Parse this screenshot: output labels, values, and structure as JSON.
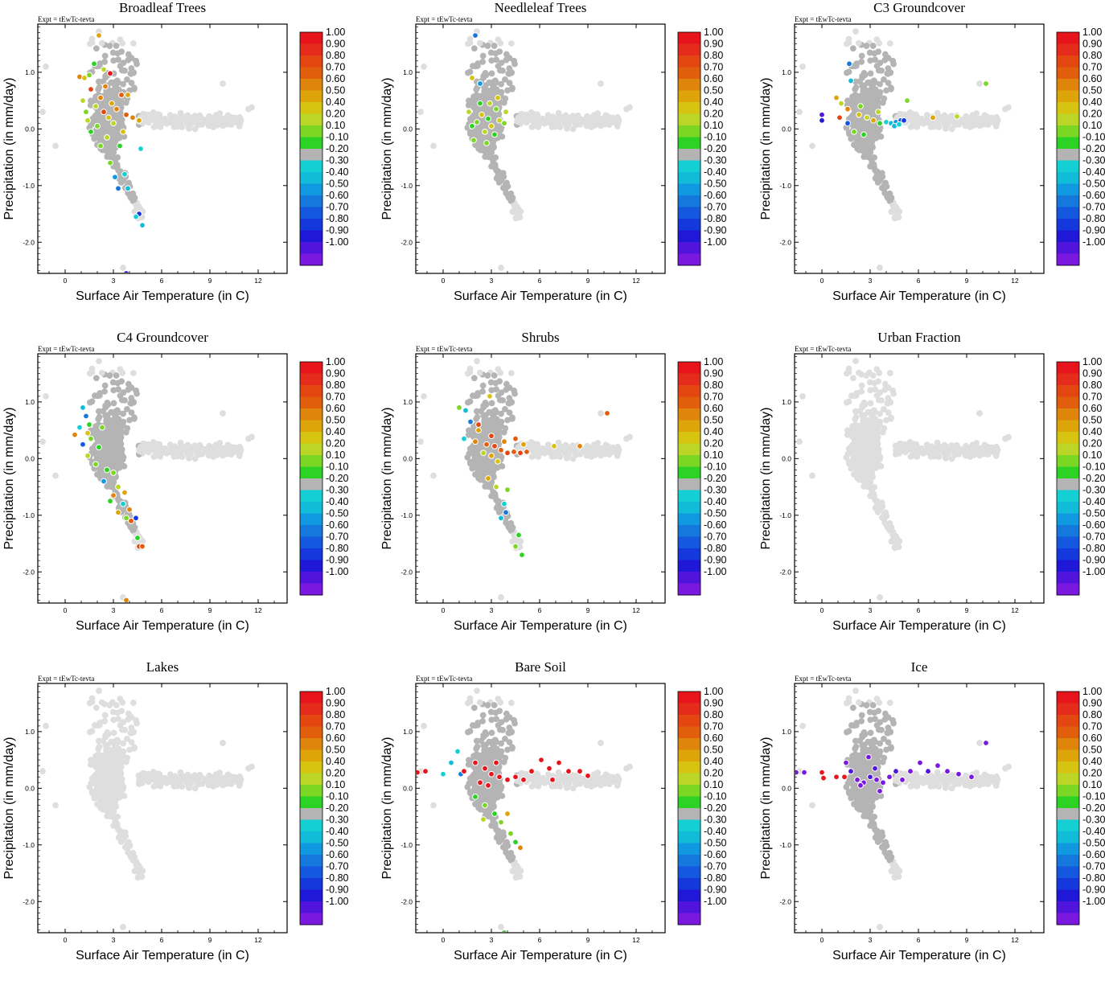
{
  "chart_data": {
    "type": "scatter",
    "common": {
      "expt_label": "Expt = tEwTc-tevta",
      "xlabel": "Surface Air Temperature (in C)",
      "ylabel": "Precipitation (in mm/day)",
      "xlim": [
        -1.7,
        13.8
      ],
      "ylim": [
        -2.55,
        1.85
      ],
      "xticks": [
        0,
        3,
        6,
        9,
        12
      ],
      "xtick_labels": [
        "0",
        "3",
        "6",
        "9",
        "12"
      ],
      "yticks": [
        -2,
        -1,
        0,
        1
      ],
      "ytick_labels": [
        "-2.0",
        "-1.0",
        "0.0",
        "1.0"
      ],
      "colorbar": {
        "labels": [
          "1.00",
          "0.90",
          "0.80",
          "0.70",
          "0.60",
          "0.50",
          "0.40",
          "0.20",
          "0.10",
          "-0.10",
          "-0.20",
          "-0.30",
          "-0.40",
          "-0.50",
          "-0.60",
          "-0.70",
          "-0.80",
          "-0.90",
          "-1.00"
        ],
        "colors": [
          "#e8141c",
          "#e52c1c",
          "#e44612",
          "#e05e0c",
          "#e0850c",
          "#dda50a",
          "#d6c410",
          "#bcd628",
          "#7cd624",
          "#2cd224",
          "#b4b4b4",
          "#14d0d4",
          "#10bcd8",
          "#1098e0",
          "#1478dc",
          "#1458e0",
          "#1438dc",
          "#2018d8",
          "#5014dc",
          "#7a18e0"
        ]
      }
    },
    "panels": [
      {
        "title": "Broadleaf Trees",
        "highlight": [
          [
            2.1,
            1.65,
            "#dda50a"
          ],
          [
            1.8,
            1.15,
            "#2cd224"
          ],
          [
            2.4,
            1.05,
            "#bcd628"
          ],
          [
            0.9,
            0.92,
            "#e0850c"
          ],
          [
            1.2,
            0.9,
            "#d6c410"
          ],
          [
            1.5,
            0.95,
            "#7cd624"
          ],
          [
            2.8,
            0.98,
            "#e8141c"
          ],
          [
            3.5,
            0.6,
            "#e05e0c"
          ],
          [
            1.6,
            0.7,
            "#e44612"
          ],
          [
            2.2,
            0.55,
            "#e0850c"
          ],
          [
            2.9,
            0.45,
            "#dda50a"
          ],
          [
            1.9,
            0.4,
            "#bcd628"
          ],
          [
            3.2,
            0.35,
            "#e0850c"
          ],
          [
            2.4,
            0.3,
            "#e44612"
          ],
          [
            1.3,
            0.3,
            "#7cd624"
          ],
          [
            3.8,
            0.25,
            "#e05e0c"
          ],
          [
            2.7,
            0.2,
            "#d6c410"
          ],
          [
            4.2,
            0.2,
            "#e0850c"
          ],
          [
            3.0,
            0.1,
            "#bcd628"
          ],
          [
            2.0,
            0.05,
            "#7cd624"
          ],
          [
            1.6,
            -0.05,
            "#2cd224"
          ],
          [
            2.6,
            -0.15,
            "#bcd628"
          ],
          [
            3.6,
            -0.05,
            "#d6c410"
          ],
          [
            2.2,
            -0.3,
            "#7cd624"
          ],
          [
            3.4,
            -0.3,
            "#2cd224"
          ],
          [
            3.1,
            -0.85,
            "#1098e0"
          ],
          [
            3.7,
            -0.8,
            "#14d0d4"
          ],
          [
            3.3,
            -1.05,
            "#1478dc"
          ],
          [
            3.9,
            -1.05,
            "#10bcd8"
          ],
          [
            4.6,
            -1.5,
            "#1438dc"
          ],
          [
            4.4,
            -1.55,
            "#14d0d4"
          ],
          [
            4.8,
            -1.7,
            "#10bcd8"
          ],
          [
            3.8,
            -2.55,
            "#2018d8"
          ],
          [
            1.1,
            0.5,
            "#bcd628"
          ],
          [
            4.6,
            0.15,
            "#dda50a"
          ],
          [
            3.9,
            0.6,
            "#dda50a"
          ],
          [
            2.5,
            0.75,
            "#e0850c"
          ],
          [
            1.4,
            0.15,
            "#bcd628"
          ],
          [
            2.8,
            -0.6,
            "#7cd624"
          ],
          [
            4.7,
            -0.35,
            "#14d0d4"
          ]
        ]
      },
      {
        "title": "Needleleaf Trees",
        "highlight": [
          [
            2.0,
            1.65,
            "#1478dc"
          ],
          [
            1.8,
            0.9,
            "#d6c410"
          ],
          [
            2.3,
            0.8,
            "#1098e0"
          ],
          [
            2.9,
            0.45,
            "#bcd628"
          ],
          [
            3.3,
            0.35,
            "#7cd624"
          ],
          [
            2.4,
            0.25,
            "#d6c410"
          ],
          [
            2.8,
            0.18,
            "#2cd224"
          ],
          [
            3.5,
            0.15,
            "#bcd628"
          ],
          [
            2.1,
            0.12,
            "#7cd624"
          ],
          [
            1.8,
            0.05,
            "#2cd224"
          ],
          [
            3.0,
            0.05,
            "#d6c410"
          ],
          [
            3.8,
            0.1,
            "#7cd624"
          ],
          [
            2.6,
            -0.05,
            "#bcd628"
          ],
          [
            3.2,
            -0.1,
            "#2cd224"
          ],
          [
            1.9,
            -0.2,
            "#7cd624"
          ],
          [
            2.3,
            0.45,
            "#2cd224"
          ],
          [
            3.9,
            0.3,
            "#bcd628"
          ],
          [
            2.7,
            -0.25,
            "#7cd624"
          ],
          [
            1.6,
            0.3,
            "#bcd628"
          ],
          [
            3.4,
            0.55,
            "#d6c410"
          ]
        ]
      },
      {
        "title": "C3 Groundcover",
        "highlight": [
          [
            0.0,
            0.25,
            "#5014dc"
          ],
          [
            0.0,
            0.15,
            "#2018d8"
          ],
          [
            1.7,
            1.15,
            "#1478dc"
          ],
          [
            1.8,
            0.85,
            "#10bcd8"
          ],
          [
            0.9,
            0.55,
            "#dda50a"
          ],
          [
            1.2,
            0.45,
            "#bcd628"
          ],
          [
            1.6,
            0.35,
            "#e0850c"
          ],
          [
            2.3,
            0.25,
            "#d6c410"
          ],
          [
            2.8,
            0.2,
            "#bcd628"
          ],
          [
            3.2,
            0.15,
            "#dda50a"
          ],
          [
            1.6,
            0.1,
            "#1458e0"
          ],
          [
            3.6,
            0.1,
            "#2cd224"
          ],
          [
            4.0,
            0.12,
            "#14d0d4"
          ],
          [
            4.3,
            0.1,
            "#10bcd8"
          ],
          [
            4.6,
            0.12,
            "#1098e0"
          ],
          [
            4.9,
            0.15,
            "#1458e0"
          ],
          [
            5.1,
            0.15,
            "#1438dc"
          ],
          [
            2.0,
            -0.05,
            "#7cd624"
          ],
          [
            2.6,
            -0.1,
            "#2cd224"
          ],
          [
            5.3,
            0.5,
            "#7cd624"
          ],
          [
            6.9,
            0.2,
            "#dda50a"
          ],
          [
            8.4,
            0.22,
            "#bcd628"
          ],
          [
            10.2,
            0.8,
            "#7cd624"
          ],
          [
            1.1,
            0.2,
            "#e44612"
          ],
          [
            3.5,
            0.3,
            "#bcd628"
          ],
          [
            2.4,
            0.4,
            "#7cd624"
          ],
          [
            4.5,
            0.05,
            "#10bcd8"
          ],
          [
            4.8,
            0.08,
            "#14d0d4"
          ]
        ]
      },
      {
        "title": "C4 Groundcover",
        "highlight": [
          [
            1.1,
            0.9,
            "#10bcd8"
          ],
          [
            1.3,
            0.75,
            "#1478dc"
          ],
          [
            0.9,
            0.55,
            "#14d0d4"
          ],
          [
            1.4,
            0.45,
            "#d6c410"
          ],
          [
            0.6,
            0.42,
            "#e0850c"
          ],
          [
            1.6,
            0.35,
            "#7cd624"
          ],
          [
            1.1,
            0.25,
            "#1458e0"
          ],
          [
            2.1,
            0.2,
            "#2cd224"
          ],
          [
            1.4,
            0.05,
            "#bcd628"
          ],
          [
            1.9,
            -0.1,
            "#7cd624"
          ],
          [
            2.6,
            -0.2,
            "#2cd224"
          ],
          [
            3.0,
            -0.25,
            "#7cd624"
          ],
          [
            2.4,
            -0.4,
            "#1098e0"
          ],
          [
            3.3,
            -0.5,
            "#bcd628"
          ],
          [
            3.0,
            -0.65,
            "#e0850c"
          ],
          [
            3.7,
            -0.6,
            "#dda50a"
          ],
          [
            2.8,
            -0.75,
            "#2cd224"
          ],
          [
            3.6,
            -0.8,
            "#14d0d4"
          ],
          [
            4.0,
            -0.9,
            "#e0850c"
          ],
          [
            3.3,
            -0.95,
            "#dda50a"
          ],
          [
            4.4,
            -1.05,
            "#1438dc"
          ],
          [
            3.8,
            -1.05,
            "#7cd624"
          ],
          [
            4.1,
            -1.1,
            "#e05e0c"
          ],
          [
            4.5,
            -1.4,
            "#2cd224"
          ],
          [
            4.6,
            -1.55,
            "#e44612"
          ],
          [
            4.8,
            -1.55,
            "#e05e0c"
          ],
          [
            3.8,
            -2.5,
            "#e0850c"
          ],
          [
            1.5,
            0.6,
            "#2cd224"
          ],
          [
            2.3,
            0.55,
            "#7cd624"
          ]
        ]
      },
      {
        "title": "Shrubs",
        "highlight": [
          [
            2.9,
            1.1,
            "#d6c410"
          ],
          [
            1.0,
            0.9,
            "#7cd624"
          ],
          [
            1.4,
            0.85,
            "#10bcd8"
          ],
          [
            1.7,
            0.65,
            "#1478dc"
          ],
          [
            2.2,
            0.5,
            "#dda50a"
          ],
          [
            1.3,
            0.35,
            "#14d0d4"
          ],
          [
            2.0,
            0.3,
            "#e0850c"
          ],
          [
            2.7,
            0.25,
            "#e05e0c"
          ],
          [
            3.2,
            0.22,
            "#e44612"
          ],
          [
            3.6,
            0.15,
            "#e05e0c"
          ],
          [
            4.0,
            0.1,
            "#e44612"
          ],
          [
            4.4,
            0.12,
            "#e05e0c"
          ],
          [
            4.8,
            0.1,
            "#e44612"
          ],
          [
            5.2,
            0.12,
            "#e05e0c"
          ],
          [
            3.8,
            0.3,
            "#e0850c"
          ],
          [
            3.0,
            0.05,
            "#dda50a"
          ],
          [
            2.5,
            0.1,
            "#bcd628"
          ],
          [
            3.4,
            -0.05,
            "#d6c410"
          ],
          [
            2.8,
            -0.35,
            "#dda50a"
          ],
          [
            3.3,
            -0.5,
            "#bcd628"
          ],
          [
            4.0,
            -0.55,
            "#7cd624"
          ],
          [
            3.8,
            -0.8,
            "#14d0d4"
          ],
          [
            3.9,
            -0.95,
            "#1478dc"
          ],
          [
            3.6,
            -1.05,
            "#10bcd8"
          ],
          [
            4.7,
            -1.35,
            "#2cd224"
          ],
          [
            4.5,
            -1.55,
            "#7cd624"
          ],
          [
            4.9,
            -1.7,
            "#2cd224"
          ],
          [
            6.9,
            0.22,
            "#d6c410"
          ],
          [
            8.5,
            0.22,
            "#e0850c"
          ],
          [
            10.2,
            0.8,
            "#e05e0c"
          ],
          [
            2.2,
            0.6,
            "#e44612"
          ],
          [
            4.5,
            0.35,
            "#e05e0c"
          ],
          [
            3.0,
            0.4,
            "#e44612"
          ],
          [
            5.0,
            0.25,
            "#dda50a"
          ]
        ]
      },
      {
        "title": "Urban Fraction",
        "highlight": []
      },
      {
        "title": "Lakes",
        "highlight": []
      },
      {
        "title": "Bare Soil",
        "highlight": [
          [
            -1.6,
            0.28,
            "#e8141c"
          ],
          [
            -1.1,
            0.3,
            "#e8141c"
          ],
          [
            0.0,
            0.25,
            "#14d0d4"
          ],
          [
            0.5,
            0.45,
            "#10bcd8"
          ],
          [
            0.9,
            0.65,
            "#14d0d4"
          ],
          [
            1.1,
            0.25,
            "#1478dc"
          ],
          [
            1.3,
            0.3,
            "#e8141c"
          ],
          [
            2.0,
            0.45,
            "#e8141c"
          ],
          [
            2.6,
            0.35,
            "#e8141c"
          ],
          [
            3.0,
            0.25,
            "#e8141c"
          ],
          [
            3.5,
            0.2,
            "#e8141c"
          ],
          [
            4.0,
            0.15,
            "#e8141c"
          ],
          [
            4.5,
            0.2,
            "#e8141c"
          ],
          [
            5.0,
            0.15,
            "#e8141c"
          ],
          [
            5.5,
            0.3,
            "#e8141c"
          ],
          [
            6.1,
            0.5,
            "#e8141c"
          ],
          [
            6.6,
            0.35,
            "#e8141c"
          ],
          [
            7.2,
            0.45,
            "#e8141c"
          ],
          [
            7.8,
            0.3,
            "#e8141c"
          ],
          [
            8.5,
            0.3,
            "#e8141c"
          ],
          [
            9.0,
            0.22,
            "#e8141c"
          ],
          [
            2.3,
            0.1,
            "#e8141c"
          ],
          [
            2.8,
            0.05,
            "#e8141c"
          ],
          [
            2.0,
            -0.15,
            "#2cd224"
          ],
          [
            2.6,
            -0.3,
            "#7cd624"
          ],
          [
            3.2,
            -0.45,
            "#2cd224"
          ],
          [
            2.5,
            -0.55,
            "#bcd628"
          ],
          [
            3.6,
            -0.6,
            "#7cd624"
          ],
          [
            4.0,
            -0.45,
            "#dda50a"
          ],
          [
            4.2,
            -0.8,
            "#7cd624"
          ],
          [
            4.5,
            -0.95,
            "#2cd224"
          ],
          [
            4.8,
            -1.05,
            "#e0850c"
          ],
          [
            3.8,
            -2.55,
            "#2cd224"
          ],
          [
            6.8,
            0.15,
            "#e8141c"
          ],
          [
            3.3,
            0.45,
            "#e8141c"
          ]
        ]
      },
      {
        "title": "Ice",
        "highlight": [
          [
            -1.6,
            0.28,
            "#7a18e0"
          ],
          [
            -1.1,
            0.28,
            "#7a18e0"
          ],
          [
            0.0,
            0.28,
            "#e8141c"
          ],
          [
            0.1,
            0.18,
            "#e8141c"
          ],
          [
            0.9,
            0.2,
            "#e8141c"
          ],
          [
            1.4,
            0.2,
            "#e8141c"
          ],
          [
            1.5,
            0.45,
            "#7a18e0"
          ],
          [
            1.8,
            0.3,
            "#5014dc"
          ],
          [
            2.2,
            0.15,
            "#7a18e0"
          ],
          [
            2.6,
            0.1,
            "#7a18e0"
          ],
          [
            3.0,
            0.2,
            "#5014dc"
          ],
          [
            3.4,
            0.15,
            "#7a18e0"
          ],
          [
            3.8,
            0.1,
            "#7a18e0"
          ],
          [
            4.2,
            0.2,
            "#7a18e0"
          ],
          [
            4.6,
            0.3,
            "#5014dc"
          ],
          [
            5.0,
            0.15,
            "#7a18e0"
          ],
          [
            5.5,
            0.3,
            "#7a18e0"
          ],
          [
            6.1,
            0.45,
            "#7a18e0"
          ],
          [
            6.6,
            0.3,
            "#5014dc"
          ],
          [
            7.2,
            0.4,
            "#7a18e0"
          ],
          [
            7.8,
            0.3,
            "#7a18e0"
          ],
          [
            8.5,
            0.25,
            "#7a18e0"
          ],
          [
            9.3,
            0.2,
            "#7a18e0"
          ],
          [
            10.2,
            0.8,
            "#7a18e0"
          ],
          [
            2.9,
            0.55,
            "#7a18e0"
          ],
          [
            3.3,
            0.35,
            "#5014dc"
          ],
          [
            2.4,
            0.05,
            "#7a18e0"
          ],
          [
            3.6,
            -0.05,
            "#7a18e0"
          ]
        ]
      }
    ]
  }
}
